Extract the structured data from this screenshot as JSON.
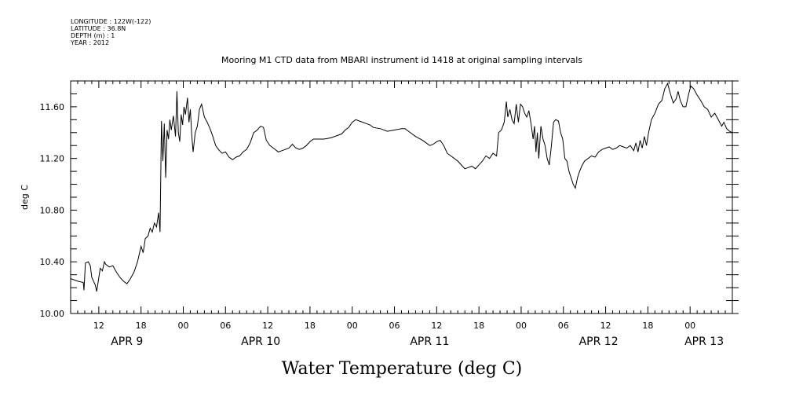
{
  "meta": {
    "longitude": "LONGITUDE : 122W(-122)",
    "latitude": "LATITUDE : 36.8N",
    "depth": "DEPTH (m) : 1",
    "year": "YEAR : 2012"
  },
  "chart_data": {
    "type": "line",
    "title": "Mooring M1 CTD data from MBARI instrument id 1418 at original sampling intervals",
    "xlabel": "Water Temperature (deg C)",
    "ylabel": "deg C",
    "xlim_hours": [
      0,
      94
    ],
    "ylim": [
      10.0,
      11.8
    ],
    "yticks": [
      "10.00",
      "10.40",
      "10.80",
      "11.20",
      "11.60"
    ],
    "ytick_values": [
      10.0,
      10.4,
      10.8,
      11.2,
      11.6
    ],
    "xticks": [
      {
        "h": 4,
        "label": "12"
      },
      {
        "h": 10,
        "label": "18"
      },
      {
        "h": 16,
        "label": "00"
      },
      {
        "h": 22,
        "label": "06"
      },
      {
        "h": 28,
        "label": "12"
      },
      {
        "h": 34,
        "label": "18"
      },
      {
        "h": 40,
        "label": "00"
      },
      {
        "h": 46,
        "label": "06"
      },
      {
        "h": 52,
        "label": "12"
      },
      {
        "h": 58,
        "label": "18"
      },
      {
        "h": 64,
        "label": "00"
      },
      {
        "h": 70,
        "label": "06"
      },
      {
        "h": 76,
        "label": "12"
      },
      {
        "h": 82,
        "label": "18"
      },
      {
        "h": 88,
        "label": "00"
      }
    ],
    "days": [
      {
        "h": 8,
        "label": "APR  9"
      },
      {
        "h": 27,
        "label": "APR 10"
      },
      {
        "h": 51,
        "label": "APR 11"
      },
      {
        "h": 75,
        "label": "APR 12"
      },
      {
        "h": 90,
        "label": "APR 13"
      }
    ],
    "grid": false,
    "series": [
      {
        "values": [
          [
            0,
            10.27
          ],
          [
            1,
            10.25
          ],
          [
            1.8,
            10.24
          ],
          [
            1.9,
            10.18
          ],
          [
            2.1,
            10.39
          ],
          [
            2.5,
            10.4
          ],
          [
            2.8,
            10.37
          ],
          [
            3,
            10.28
          ],
          [
            3.5,
            10.22
          ],
          [
            3.7,
            10.17
          ],
          [
            4.2,
            10.35
          ],
          [
            4.5,
            10.33
          ],
          [
            4.8,
            10.4
          ],
          [
            5,
            10.38
          ],
          [
            5.5,
            10.36
          ],
          [
            6,
            10.37
          ],
          [
            6.5,
            10.32
          ],
          [
            7,
            10.28
          ],
          [
            7.5,
            10.25
          ],
          [
            8,
            10.23
          ],
          [
            8.5,
            10.27
          ],
          [
            9,
            10.32
          ],
          [
            9.5,
            10.4
          ],
          [
            10,
            10.52
          ],
          [
            10.3,
            10.47
          ],
          [
            10.6,
            10.58
          ],
          [
            11,
            10.6
          ],
          [
            11.3,
            10.66
          ],
          [
            11.6,
            10.63
          ],
          [
            11.9,
            10.7
          ],
          [
            12.2,
            10.67
          ],
          [
            12.5,
            10.78
          ],
          [
            12.7,
            10.63
          ],
          [
            12.9,
            11.49
          ],
          [
            13.1,
            11.18
          ],
          [
            13.3,
            11.47
          ],
          [
            13.5,
            11.05
          ],
          [
            13.7,
            11.42
          ],
          [
            13.9,
            11.35
          ],
          [
            14.1,
            11.5
          ],
          [
            14.3,
            11.42
          ],
          [
            14.6,
            11.53
          ],
          [
            14.9,
            11.37
          ],
          [
            15.1,
            11.72
          ],
          [
            15.3,
            11.4
          ],
          [
            15.5,
            11.33
          ],
          [
            15.7,
            11.54
          ],
          [
            15.9,
            11.46
          ],
          [
            16.1,
            11.6
          ],
          [
            16.3,
            11.54
          ],
          [
            16.6,
            11.67
          ],
          [
            16.8,
            11.48
          ],
          [
            17,
            11.58
          ],
          [
            17.2,
            11.38
          ],
          [
            17.4,
            11.25
          ],
          [
            17.7,
            11.4
          ],
          [
            18,
            11.45
          ],
          [
            18.3,
            11.58
          ],
          [
            18.6,
            11.62
          ],
          [
            19,
            11.52
          ],
          [
            19.4,
            11.48
          ],
          [
            19.8,
            11.43
          ],
          [
            20.2,
            11.37
          ],
          [
            20.6,
            11.3
          ],
          [
            21,
            11.27
          ],
          [
            21.5,
            11.24
          ],
          [
            22,
            11.25
          ],
          [
            22.5,
            11.21
          ],
          [
            23,
            11.19
          ],
          [
            23.5,
            11.21
          ],
          [
            24,
            11.22
          ],
          [
            24.5,
            11.25
          ],
          [
            25,
            11.27
          ],
          [
            25.5,
            11.32
          ],
          [
            26,
            11.4
          ],
          [
            26.5,
            11.42
          ],
          [
            27,
            11.45
          ],
          [
            27.4,
            11.44
          ],
          [
            27.8,
            11.34
          ],
          [
            28.3,
            11.3
          ],
          [
            28.8,
            11.28
          ],
          [
            29.5,
            11.25
          ],
          [
            30,
            11.26
          ],
          [
            30.5,
            11.27
          ],
          [
            31,
            11.28
          ],
          [
            31.5,
            11.31
          ],
          [
            32,
            11.28
          ],
          [
            32.5,
            11.27
          ],
          [
            33,
            11.28
          ],
          [
            33.5,
            11.3
          ],
          [
            34,
            11.33
          ],
          [
            34.5,
            11.35
          ],
          [
            35,
            11.35
          ],
          [
            36,
            11.35
          ],
          [
            37,
            11.36
          ],
          [
            38,
            11.38
          ],
          [
            38.5,
            11.39
          ],
          [
            39,
            11.42
          ],
          [
            39.5,
            11.44
          ],
          [
            40,
            11.48
          ],
          [
            40.5,
            11.5
          ],
          [
            41,
            11.49
          ],
          [
            41.5,
            11.48
          ],
          [
            42,
            11.47
          ],
          [
            42.5,
            11.46
          ],
          [
            43,
            11.44
          ],
          [
            44,
            11.43
          ],
          [
            45,
            11.41
          ],
          [
            46,
            11.42
          ],
          [
            47,
            11.43
          ],
          [
            47.5,
            11.43
          ],
          [
            48,
            11.41
          ],
          [
            49,
            11.37
          ],
          [
            50,
            11.34
          ],
          [
            51,
            11.3
          ],
          [
            51.5,
            11.31
          ],
          [
            52,
            11.33
          ],
          [
            52.5,
            11.34
          ],
          [
            53,
            11.3
          ],
          [
            53.5,
            11.24
          ],
          [
            54,
            11.22
          ],
          [
            54.5,
            11.2
          ],
          [
            55,
            11.18
          ],
          [
            55.5,
            11.15
          ],
          [
            56,
            11.12
          ],
          [
            56.5,
            11.13
          ],
          [
            57,
            11.14
          ],
          [
            57.5,
            11.12
          ],
          [
            58,
            11.15
          ],
          [
            58.5,
            11.18
          ],
          [
            59,
            11.22
          ],
          [
            59.5,
            11.2
          ],
          [
            60,
            11.24
          ],
          [
            60.5,
            11.22
          ],
          [
            60.8,
            11.4
          ],
          [
            61.2,
            11.42
          ],
          [
            61.6,
            11.48
          ],
          [
            61.9,
            11.64
          ],
          [
            62.1,
            11.52
          ],
          [
            62.4,
            11.58
          ],
          [
            62.7,
            11.5
          ],
          [
            63,
            11.47
          ],
          [
            63.3,
            11.62
          ],
          [
            63.6,
            11.48
          ],
          [
            63.9,
            11.62
          ],
          [
            64.2,
            11.6
          ],
          [
            64.5,
            11.55
          ],
          [
            64.8,
            11.52
          ],
          [
            65.1,
            11.57
          ],
          [
            65.4,
            11.47
          ],
          [
            65.7,
            11.35
          ],
          [
            65.9,
            11.45
          ],
          [
            66.1,
            11.25
          ],
          [
            66.3,
            11.4
          ],
          [
            66.5,
            11.2
          ],
          [
            66.8,
            11.45
          ],
          [
            67.1,
            11.35
          ],
          [
            67.4,
            11.3
          ],
          [
            67.7,
            11.2
          ],
          [
            68,
            11.15
          ],
          [
            68.3,
            11.3
          ],
          [
            68.6,
            11.48
          ],
          [
            68.9,
            11.5
          ],
          [
            69.3,
            11.49
          ],
          [
            69.6,
            11.4
          ],
          [
            69.9,
            11.35
          ],
          [
            70.2,
            11.2
          ],
          [
            70.5,
            11.18
          ],
          [
            70.8,
            11.1
          ],
          [
            71.1,
            11.05
          ],
          [
            71.4,
            11.0
          ],
          [
            71.7,
            10.97
          ],
          [
            72,
            11.05
          ],
          [
            72.3,
            11.1
          ],
          [
            72.6,
            11.14
          ],
          [
            73,
            11.18
          ],
          [
            73.5,
            11.2
          ],
          [
            74,
            11.22
          ],
          [
            74.5,
            11.21
          ],
          [
            75,
            11.25
          ],
          [
            75.5,
            11.27
          ],
          [
            76,
            11.28
          ],
          [
            76.5,
            11.29
          ],
          [
            77,
            11.27
          ],
          [
            77.5,
            11.28
          ],
          [
            78,
            11.3
          ],
          [
            78.5,
            11.29
          ],
          [
            79,
            11.28
          ],
          [
            79.5,
            11.3
          ],
          [
            80,
            11.26
          ],
          [
            80.3,
            11.32
          ],
          [
            80.6,
            11.25
          ],
          [
            80.9,
            11.34
          ],
          [
            81.2,
            11.28
          ],
          [
            81.5,
            11.37
          ],
          [
            81.8,
            11.3
          ],
          [
            82.1,
            11.4
          ],
          [
            82.5,
            11.5
          ],
          [
            83,
            11.55
          ],
          [
            83.5,
            11.62
          ],
          [
            84,
            11.65
          ],
          [
            84.4,
            11.74
          ],
          [
            84.8,
            11.78
          ],
          [
            85.2,
            11.7
          ],
          [
            85.6,
            11.63
          ],
          [
            86,
            11.66
          ],
          [
            86.3,
            11.72
          ],
          [
            86.6,
            11.65
          ],
          [
            87,
            11.6
          ],
          [
            87.4,
            11.6
          ],
          [
            87.8,
            11.7
          ],
          [
            88.1,
            11.76
          ],
          [
            88.5,
            11.74
          ],
          [
            89,
            11.69
          ],
          [
            89.5,
            11.65
          ],
          [
            90,
            11.6
          ],
          [
            90.5,
            11.58
          ],
          [
            91,
            11.52
          ],
          [
            91.5,
            11.55
          ],
          [
            92,
            11.5
          ],
          [
            92.5,
            11.45
          ],
          [
            92.8,
            11.48
          ],
          [
            93.2,
            11.43
          ],
          [
            93.6,
            11.41
          ],
          [
            94,
            11.4
          ]
        ]
      }
    ]
  }
}
